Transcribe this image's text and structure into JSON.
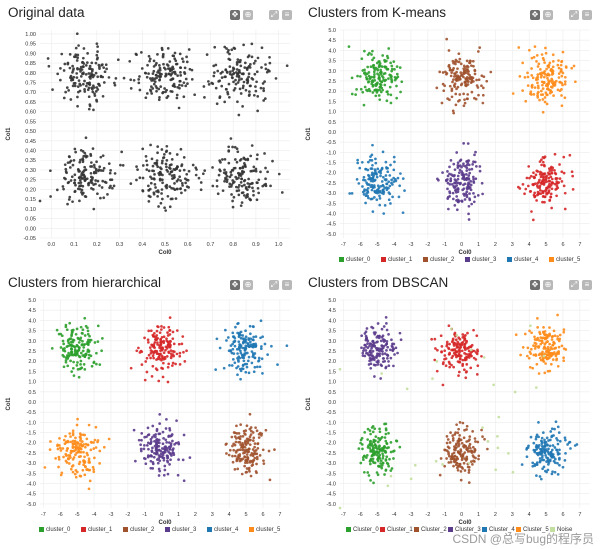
{
  "colors": {
    "original": "#333333",
    "noise": "#c3df9f",
    "green": "#2ca02c",
    "red": "#d62728",
    "brown": "#a0522d",
    "purple": "#5b3b8c",
    "blue": "#1f77b4",
    "orange": "#ff8c1a"
  },
  "toolbar_icons": [
    "move-icon",
    "zoom-icon",
    "autoscale-icon",
    "reset-icon"
  ],
  "watermark": "CSDN @总写bug的程序员",
  "chart_data": [
    {
      "type": "scatter",
      "title": "Original data",
      "xlabel": "Col0",
      "ylabel": "Col1",
      "xlim": [
        -0.05,
        1.05
      ],
      "ylim": [
        -0.05,
        1.02
      ],
      "xticks": [
        0.0,
        0.1,
        0.2,
        0.3,
        0.4,
        0.5,
        0.6,
        0.7,
        0.8,
        0.9,
        1.0
      ],
      "xticklabels": [
        "0.0",
        "0.1",
        "0.2",
        "0.3",
        "0.4",
        "0.5",
        "0.6",
        "0.7",
        "0.8",
        "0.9",
        "1.0"
      ],
      "yticks": [
        -0.05,
        0.0,
        0.05,
        0.1,
        0.15,
        0.2,
        0.25,
        0.3,
        0.35,
        0.4,
        0.45,
        0.5,
        0.55,
        0.6,
        0.65,
        0.7,
        0.75,
        0.8,
        0.85,
        0.9,
        0.95,
        1.0
      ],
      "yticklabels": [
        "-0.05",
        "0.00",
        "0.05",
        "0.10",
        "0.15",
        "0.20",
        "0.25",
        "0.30",
        "0.35",
        "0.40",
        "0.45",
        "0.50",
        "0.55",
        "0.60",
        "0.65",
        "0.70",
        "0.75",
        "0.80",
        "0.85",
        "0.90",
        "0.95",
        "1.00"
      ],
      "series": [
        {
          "name": "data",
          "color_key": "original",
          "n": 900,
          "blobs": [
            [
              0.15,
              0.79,
              0.065,
              0.07
            ],
            [
              0.5,
              0.79,
              0.065,
              0.07
            ],
            [
              0.83,
              0.79,
              0.065,
              0.07
            ],
            [
              0.15,
              0.27,
              0.065,
              0.07
            ],
            [
              0.5,
              0.27,
              0.065,
              0.07
            ],
            [
              0.83,
              0.27,
              0.065,
              0.07
            ]
          ]
        }
      ],
      "legend": []
    },
    {
      "type": "scatter",
      "title": "Clusters from K-means",
      "xlabel": "Col0",
      "ylabel": "Col1",
      "xlim": [
        -7.2,
        7.6
      ],
      "ylim": [
        -5.2,
        5.0
      ],
      "xticks": [
        -7,
        -6,
        -5,
        -4,
        -3,
        -2,
        -1,
        0,
        1,
        2,
        3,
        4,
        5,
        6,
        7
      ],
      "xticklabels": [
        "-7",
        "-6",
        "-5",
        "-4",
        "-3",
        "-2",
        "-1",
        "0",
        "1",
        "2",
        "3",
        "4",
        "5",
        "6",
        "7"
      ],
      "yticks": [
        -5.0,
        -4.5,
        -4.0,
        -3.5,
        -3.0,
        -2.5,
        -2.0,
        -1.5,
        -1.0,
        -0.5,
        0.0,
        0.5,
        1.0,
        1.5,
        2.0,
        2.5,
        3.0,
        3.5,
        4.0,
        4.5,
        5.0
      ],
      "yticklabels": [
        "-5.0",
        "-4.5",
        "-4.0",
        "-3.5",
        "-3.0",
        "-2.5",
        "-2.0",
        "-1.5",
        "-1.0",
        "-0.5",
        "0.0",
        "0.5",
        "1.0",
        "1.5",
        "2.0",
        "2.5",
        "3.0",
        "3.5",
        "4.0",
        "4.5",
        "5.0"
      ],
      "series": [
        {
          "name": "cluster_0",
          "color_key": "green",
          "n": 160,
          "blobs": [
            [
              -5.0,
              2.6,
              0.6,
              0.6
            ]
          ]
        },
        {
          "name": "cluster_1",
          "color_key": "red",
          "n": 160,
          "blobs": [
            [
              5.0,
              -2.4,
              0.6,
              0.6
            ]
          ]
        },
        {
          "name": "cluster_2",
          "color_key": "brown",
          "n": 160,
          "blobs": [
            [
              0.0,
              2.6,
              0.6,
              0.6
            ]
          ]
        },
        {
          "name": "cluster_3",
          "color_key": "purple",
          "n": 160,
          "blobs": [
            [
              0.0,
              -2.4,
              0.6,
              0.6
            ]
          ]
        },
        {
          "name": "cluster_4",
          "color_key": "blue",
          "n": 160,
          "blobs": [
            [
              -5.0,
              -2.4,
              0.6,
              0.6
            ]
          ]
        },
        {
          "name": "cluster_5",
          "color_key": "orange",
          "n": 160,
          "blobs": [
            [
              5.0,
              2.6,
              0.6,
              0.6
            ]
          ]
        }
      ],
      "legend": [
        "cluster_0",
        "cluster_1",
        "cluster_2",
        "cluster_3",
        "cluster_4",
        "cluster_5"
      ]
    },
    {
      "type": "scatter",
      "title": "Clusters from hierarchical",
      "xlabel": "Col0",
      "ylabel": "Col1",
      "xlim": [
        -7.2,
        7.6
      ],
      "ylim": [
        -5.2,
        5.0
      ],
      "xticks": [
        -7,
        -6,
        -5,
        -4,
        -3,
        -2,
        -1,
        0,
        1,
        2,
        3,
        4,
        5,
        6,
        7
      ],
      "xticklabels": [
        "-7",
        "-6",
        "-5",
        "-4",
        "-3",
        "-2",
        "-1",
        "0",
        "1",
        "2",
        "3",
        "4",
        "5",
        "6",
        "7"
      ],
      "yticks": [
        -5.0,
        -4.5,
        -4.0,
        -3.5,
        -3.0,
        -2.5,
        -2.0,
        -1.5,
        -1.0,
        -0.5,
        0.0,
        0.5,
        1.0,
        1.5,
        2.0,
        2.5,
        3.0,
        3.5,
        4.0,
        4.5,
        5.0
      ],
      "yticklabels": [
        "-5.0",
        "-4.5",
        "-4.0",
        "-3.5",
        "-3.0",
        "-2.5",
        "-2.0",
        "-1.5",
        "-1.0",
        "-0.5",
        "0.0",
        "0.5",
        "1.0",
        "1.5",
        "2.0",
        "2.5",
        "3.0",
        "3.5",
        "4.0",
        "4.5",
        "5.0"
      ],
      "series": [
        {
          "name": "cluster_0",
          "color_key": "green",
          "n": 160,
          "blobs": [
            [
              -5.0,
              2.6,
              0.6,
              0.6
            ]
          ]
        },
        {
          "name": "cluster_1",
          "color_key": "red",
          "n": 160,
          "blobs": [
            [
              0.0,
              2.6,
              0.6,
              0.6
            ]
          ]
        },
        {
          "name": "cluster_2",
          "color_key": "brown",
          "n": 160,
          "blobs": [
            [
              5.0,
              -2.4,
              0.6,
              0.6
            ]
          ]
        },
        {
          "name": "cluster_3",
          "color_key": "purple",
          "n": 160,
          "blobs": [
            [
              0.0,
              -2.4,
              0.6,
              0.6
            ]
          ]
        },
        {
          "name": "cluster_4",
          "color_key": "blue",
          "n": 160,
          "blobs": [
            [
              5.0,
              2.6,
              0.6,
              0.6
            ]
          ]
        },
        {
          "name": "cluster_5",
          "color_key": "orange",
          "n": 160,
          "blobs": [
            [
              -5.0,
              -2.4,
              0.6,
              0.6
            ]
          ]
        }
      ],
      "legend": [
        "cluster_0",
        "cluster_1",
        "cluster_2",
        "cluster_3",
        "cluster_4",
        "cluster_5"
      ]
    },
    {
      "type": "scatter",
      "title": "Clusters from DBSCAN",
      "xlabel": "Col0",
      "ylabel": "Col1",
      "xlim": [
        -7.2,
        7.6
      ],
      "ylim": [
        -5.2,
        5.0
      ],
      "xticks": [
        -7,
        -6,
        -5,
        -4,
        -3,
        -2,
        -1,
        0,
        1,
        2,
        3,
        4,
        5,
        6,
        7
      ],
      "xticklabels": [
        "-7",
        "-6",
        "-5",
        "-4",
        "-3",
        "-2",
        "-1",
        "0",
        "1",
        "2",
        "3",
        "4",
        "5",
        "6",
        "7"
      ],
      "yticks": [
        -5.0,
        -4.5,
        -4.0,
        -3.5,
        -3.0,
        -2.5,
        -2.0,
        -1.5,
        -1.0,
        -0.5,
        0.0,
        0.5,
        1.0,
        1.5,
        2.0,
        2.5,
        3.0,
        3.5,
        4.0,
        4.5,
        5.0
      ],
      "yticklabels": [
        "-5.0",
        "-4.5",
        "-4.0",
        "-3.5",
        "-3.0",
        "-2.5",
        "-2.0",
        "-1.5",
        "-1.0",
        "-0.5",
        "0.0",
        "0.5",
        "1.0",
        "1.5",
        "2.0",
        "2.5",
        "3.0",
        "3.5",
        "4.0",
        "4.5",
        "5.0"
      ],
      "series": [
        {
          "name": "Cluster_0",
          "color_key": "green",
          "n": 155,
          "blobs": [
            [
              -5.0,
              -2.4,
              0.55,
              0.55
            ]
          ]
        },
        {
          "name": "Cluster_1",
          "color_key": "red",
          "n": 155,
          "blobs": [
            [
              0.0,
              2.6,
              0.55,
              0.55
            ]
          ]
        },
        {
          "name": "Cluster_2",
          "color_key": "brown",
          "n": 155,
          "blobs": [
            [
              0.0,
              -2.4,
              0.55,
              0.55
            ]
          ]
        },
        {
          "name": "Cluster_3",
          "color_key": "purple",
          "n": 155,
          "blobs": [
            [
              -5.0,
              2.6,
              0.55,
              0.55
            ]
          ]
        },
        {
          "name": "Cluster_4",
          "color_key": "blue",
          "n": 155,
          "blobs": [
            [
              5.0,
              -2.4,
              0.55,
              0.55
            ]
          ]
        },
        {
          "name": "Cluster_5",
          "color_key": "orange",
          "n": 155,
          "blobs": [
            [
              5.0,
              2.6,
              0.55,
              0.55
            ]
          ]
        },
        {
          "name": "Noise",
          "color_key": "noise",
          "n": 30,
          "blobs": [
            [
              0.0,
              0.1,
              4.2,
              2.6
            ]
          ]
        }
      ],
      "legend": [
        "Cluster_0",
        "Cluster_1",
        "Cluster_2",
        "Cluster_3",
        "Cluster_4",
        "Cluster_5",
        "Noise"
      ]
    }
  ]
}
